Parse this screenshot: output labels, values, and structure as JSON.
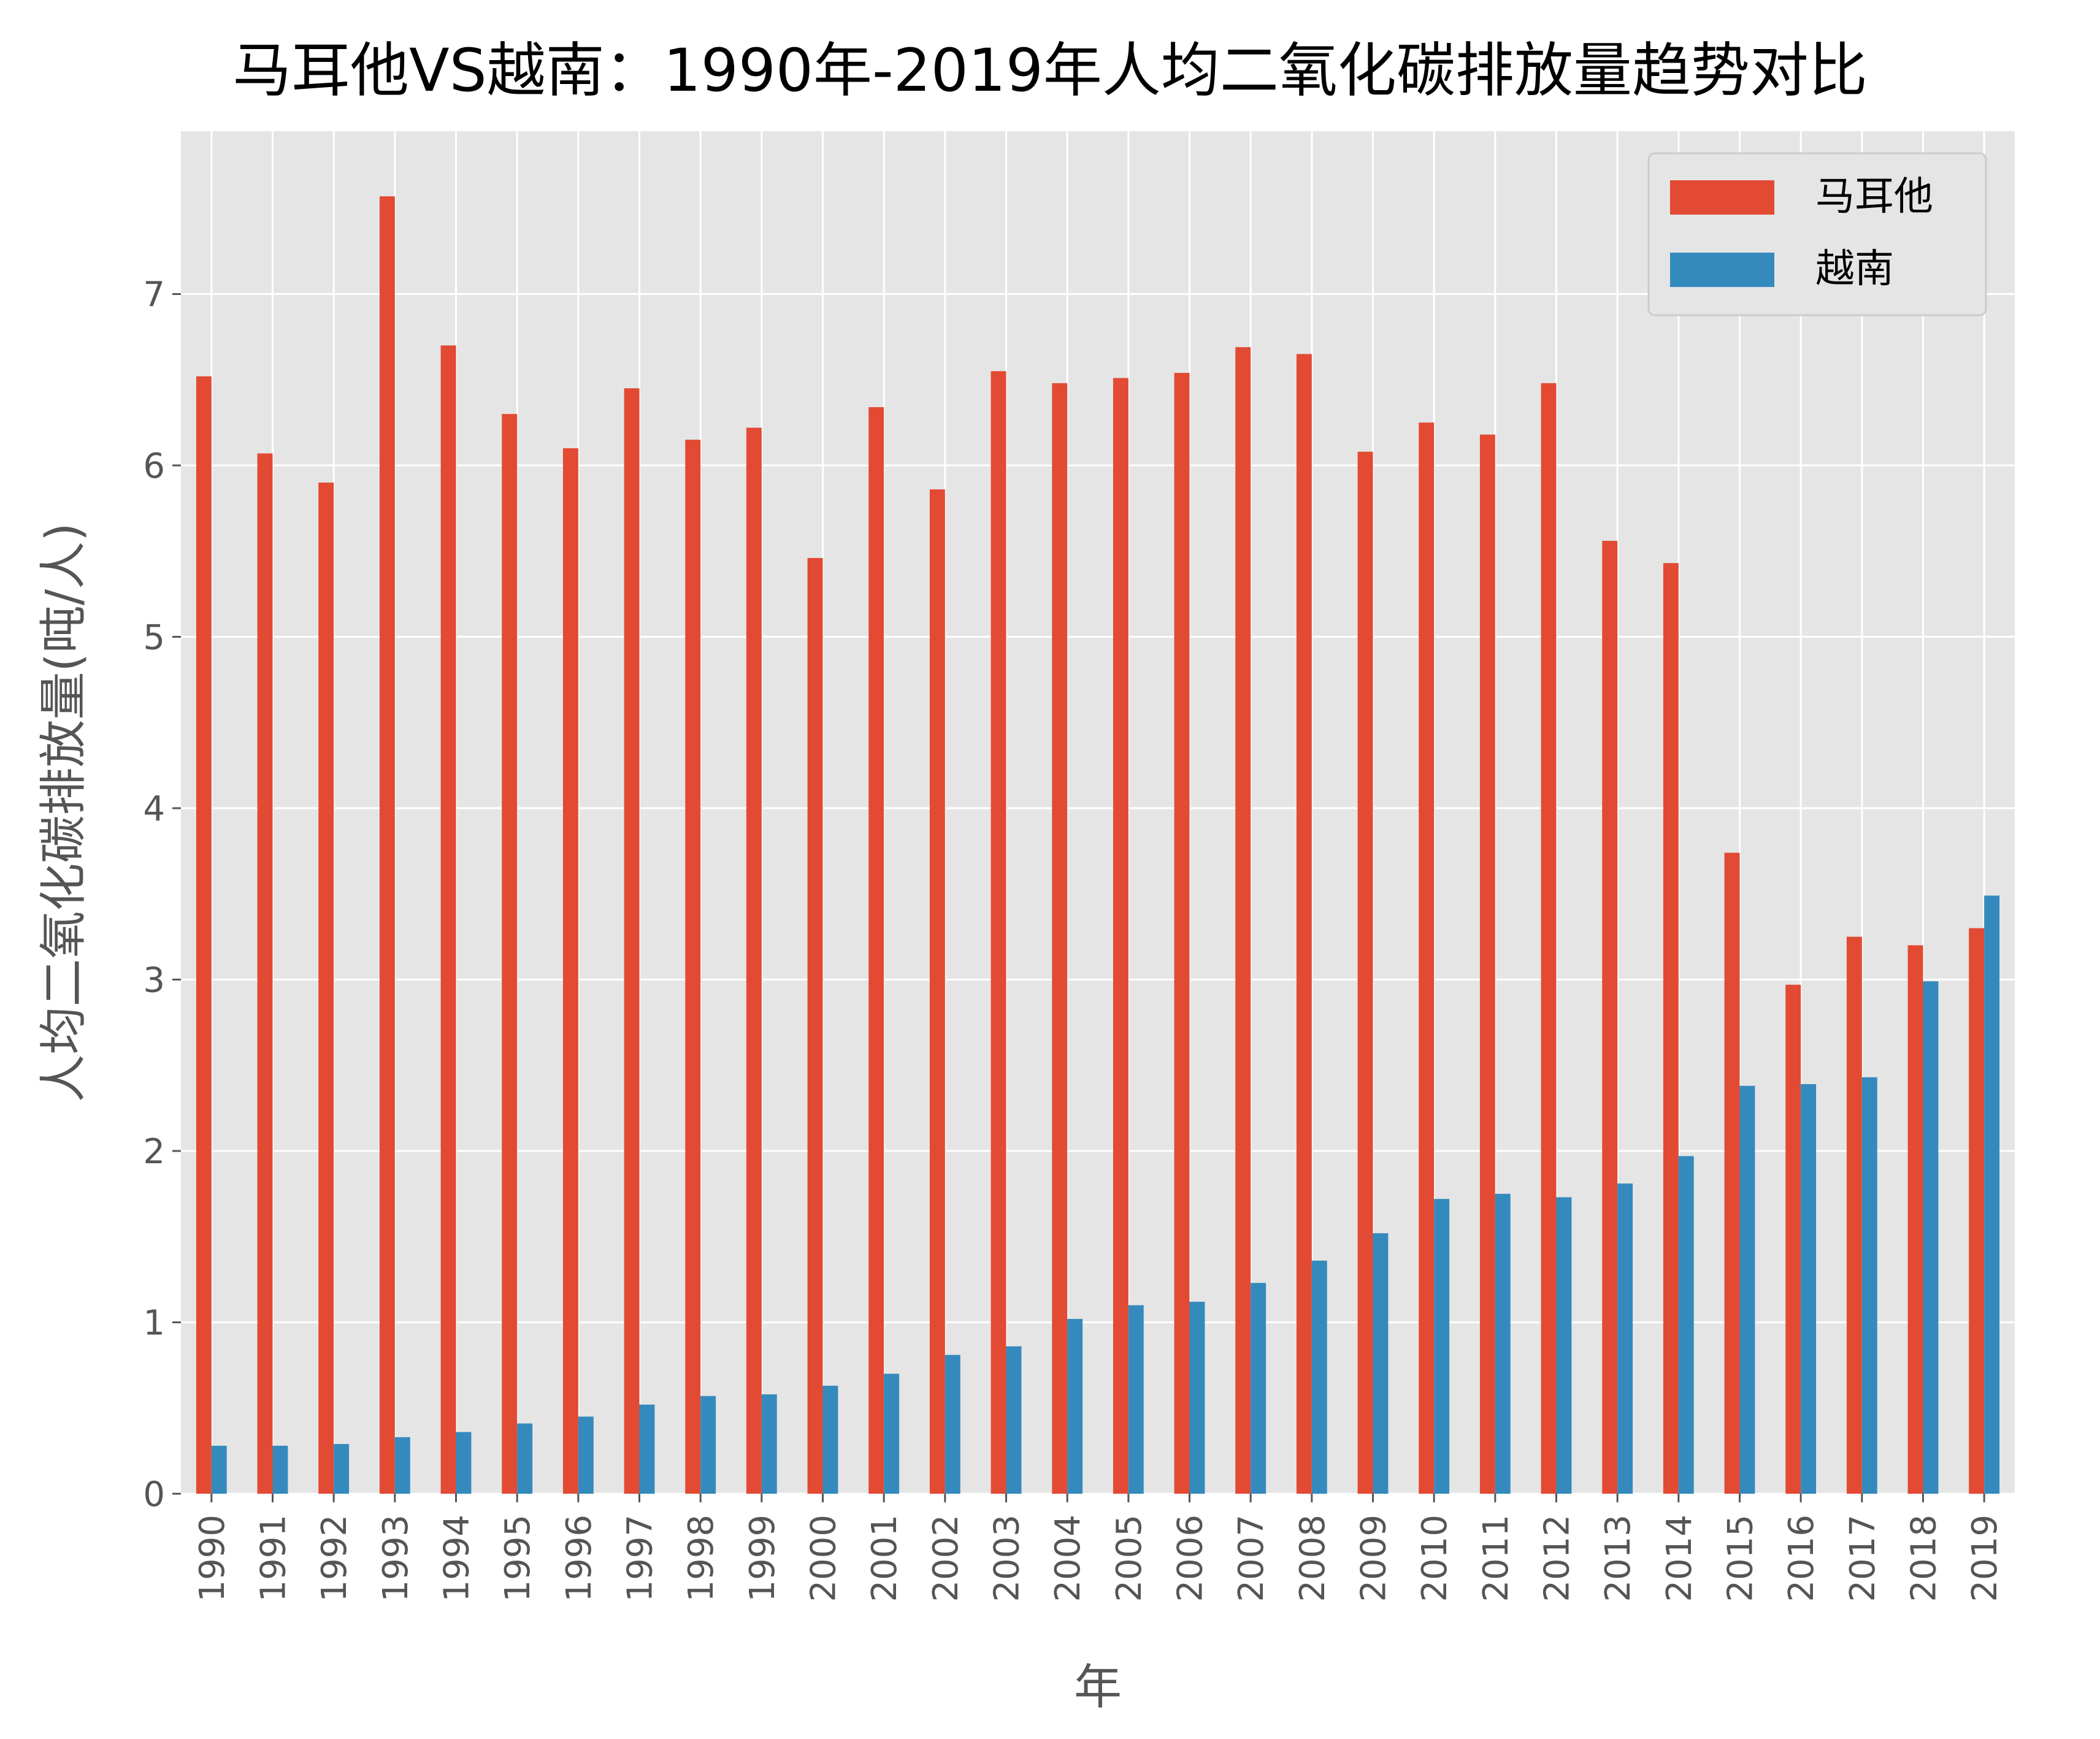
{
  "chart_data": {
    "type": "bar",
    "title": "马耳他VS越南：1990年-2019年人均二氧化碳排放量趋势对比",
    "xlabel": "年",
    "ylabel": "人均二氧化碳排放量(吨/人)",
    "ylim": [
      0,
      7.95
    ],
    "yticks": [
      0,
      1,
      2,
      3,
      4,
      5,
      6,
      7
    ],
    "grid": true,
    "legend_position": "top-right",
    "categories": [
      "1990",
      "1991",
      "1992",
      "1993",
      "1994",
      "1995",
      "1996",
      "1997",
      "1998",
      "1999",
      "2000",
      "2001",
      "2002",
      "2003",
      "2004",
      "2005",
      "2006",
      "2007",
      "2008",
      "2009",
      "2010",
      "2011",
      "2012",
      "2013",
      "2014",
      "2015",
      "2016",
      "2017",
      "2018",
      "2019"
    ],
    "series": [
      {
        "name": "马耳他",
        "color": "#E24A33",
        "values": [
          6.52,
          6.07,
          5.9,
          7.57,
          6.7,
          6.3,
          6.1,
          6.45,
          6.15,
          6.22,
          5.46,
          6.34,
          5.86,
          6.55,
          6.48,
          6.51,
          6.54,
          6.69,
          6.65,
          6.08,
          6.25,
          6.18,
          6.48,
          5.56,
          5.43,
          3.74,
          2.97,
          3.25,
          3.2,
          3.3
        ]
      },
      {
        "name": "越南",
        "color": "#348ABD",
        "values": [
          0.28,
          0.28,
          0.29,
          0.33,
          0.36,
          0.41,
          0.45,
          0.52,
          0.57,
          0.58,
          0.63,
          0.7,
          0.81,
          0.86,
          1.02,
          1.1,
          1.12,
          1.23,
          1.36,
          1.52,
          1.72,
          1.75,
          1.73,
          1.81,
          1.97,
          2.38,
          2.39,
          2.43,
          2.99,
          3.49
        ]
      }
    ]
  }
}
